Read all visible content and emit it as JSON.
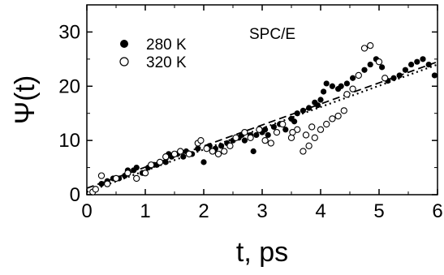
{
  "chart_data": {
    "type": "scatter",
    "xlabel": "t, ps",
    "ylabel": "Ψ(t)",
    "annotation": "SPC/E",
    "xlim": [
      0,
      6
    ],
    "ylim": [
      0,
      35
    ],
    "xticks": [
      0,
      1,
      2,
      3,
      4,
      5,
      6
    ],
    "yticks": [
      0,
      10,
      20,
      30
    ],
    "grid": false,
    "legend_position": "top-left",
    "series": [
      {
        "name": "280 K",
        "marker": "filled-circle",
        "color": "#000000",
        "points": [
          [
            0.25,
            2.0
          ],
          [
            0.35,
            2.5
          ],
          [
            0.45,
            3.0
          ],
          [
            0.55,
            3.0
          ],
          [
            0.65,
            3.5
          ],
          [
            0.7,
            4.5
          ],
          [
            0.8,
            4.5
          ],
          [
            0.85,
            5.0
          ],
          [
            0.95,
            4.0
          ],
          [
            1.05,
            5.0
          ],
          [
            1.15,
            5.5
          ],
          [
            1.2,
            5.5
          ],
          [
            1.35,
            6.0
          ],
          [
            1.4,
            7.5
          ],
          [
            1.45,
            7.0
          ],
          [
            1.55,
            7.5
          ],
          [
            1.65,
            7.0
          ],
          [
            1.7,
            8.0
          ],
          [
            1.8,
            7.5
          ],
          [
            1.9,
            8.5
          ],
          [
            2.0,
            6.0
          ],
          [
            2.05,
            8.5
          ],
          [
            2.1,
            9.0
          ],
          [
            2.2,
            8.5
          ],
          [
            2.3,
            9.0
          ],
          [
            2.4,
            9.5
          ],
          [
            2.5,
            10.0
          ],
          [
            2.6,
            10.5
          ],
          [
            2.65,
            11.0
          ],
          [
            2.7,
            10.0
          ],
          [
            2.8,
            11.0
          ],
          [
            2.85,
            8.0
          ],
          [
            2.9,
            11.0
          ],
          [
            3.0,
            11.5
          ],
          [
            3.05,
            12.0
          ],
          [
            3.1,
            11.0
          ],
          [
            3.2,
            12.5
          ],
          [
            3.3,
            13.0
          ],
          [
            3.4,
            12.0
          ],
          [
            3.5,
            14.0
          ],
          [
            3.55,
            13.5
          ],
          [
            3.6,
            15.0
          ],
          [
            3.7,
            15.5
          ],
          [
            3.8,
            16.0
          ],
          [
            3.9,
            17.0
          ],
          [
            3.95,
            16.5
          ],
          [
            4.0,
            17.5
          ],
          [
            4.05,
            19.0
          ],
          [
            4.1,
            20.5
          ],
          [
            4.2,
            20.0
          ],
          [
            4.3,
            19.5
          ],
          [
            4.35,
            20.0
          ],
          [
            4.45,
            20.5
          ],
          [
            4.55,
            21.5
          ],
          [
            4.65,
            22.0
          ],
          [
            4.75,
            23.0
          ],
          [
            4.85,
            24.0
          ],
          [
            4.95,
            25.0
          ],
          [
            5.05,
            23.5
          ],
          [
            5.15,
            21.0
          ],
          [
            5.25,
            21.5
          ],
          [
            5.35,
            22.0
          ],
          [
            5.45,
            23.0
          ],
          [
            5.55,
            24.0
          ],
          [
            5.65,
            24.5
          ],
          [
            5.75,
            25.0
          ],
          [
            5.85,
            24.0
          ],
          [
            5.95,
            22.0
          ]
        ]
      },
      {
        "name": "320 K",
        "marker": "open-circle",
        "color": "#000000",
        "points": [
          [
            0.1,
            0.5
          ],
          [
            0.15,
            1.0
          ],
          [
            0.25,
            3.5
          ],
          [
            0.35,
            2.0
          ],
          [
            0.5,
            3.0
          ],
          [
            0.7,
            4.0
          ],
          [
            0.85,
            3.0
          ],
          [
            1.0,
            4.0
          ],
          [
            1.1,
            5.5
          ],
          [
            1.25,
            6.0
          ],
          [
            1.35,
            7.0
          ],
          [
            1.5,
            7.5
          ],
          [
            1.6,
            8.0
          ],
          [
            1.75,
            7.5
          ],
          [
            1.9,
            9.5
          ],
          [
            1.95,
            10.0
          ],
          [
            2.05,
            8.5
          ],
          [
            2.15,
            8.0
          ],
          [
            2.25,
            7.5
          ],
          [
            2.35,
            8.0
          ],
          [
            2.45,
            9.0
          ],
          [
            2.55,
            10.5
          ],
          [
            2.7,
            11.5
          ],
          [
            2.8,
            10.5
          ],
          [
            2.95,
            12.0
          ],
          [
            3.05,
            10.0
          ],
          [
            3.15,
            9.5
          ],
          [
            3.25,
            11.5
          ],
          [
            3.35,
            13.0
          ],
          [
            3.5,
            10.5
          ],
          [
            3.6,
            12.0
          ],
          [
            3.7,
            8.0
          ],
          [
            3.8,
            9.0
          ],
          [
            3.9,
            10.5
          ],
          [
            4.0,
            12.0
          ],
          [
            4.1,
            13.0
          ],
          [
            4.2,
            14.0
          ],
          [
            4.3,
            14.5
          ],
          [
            4.4,
            15.5
          ],
          [
            4.45,
            18.5
          ],
          [
            4.55,
            19.5
          ],
          [
            4.65,
            22.0
          ],
          [
            4.75,
            27.0
          ],
          [
            4.85,
            27.5
          ],
          [
            5.0,
            24.5
          ],
          [
            5.1,
            21.5
          ],
          [
            3.52,
            11.5
          ],
          [
            3.75,
            11.0
          ],
          [
            3.85,
            12.5
          ]
        ]
      }
    ],
    "fit_lines": [
      {
        "style": "dashed",
        "from": [
          0,
          1.2
        ],
        "to": [
          6,
          24.5
        ]
      },
      {
        "style": "dotted",
        "from": [
          0,
          0.5
        ],
        "to": [
          6,
          24.0
        ]
      }
    ]
  }
}
